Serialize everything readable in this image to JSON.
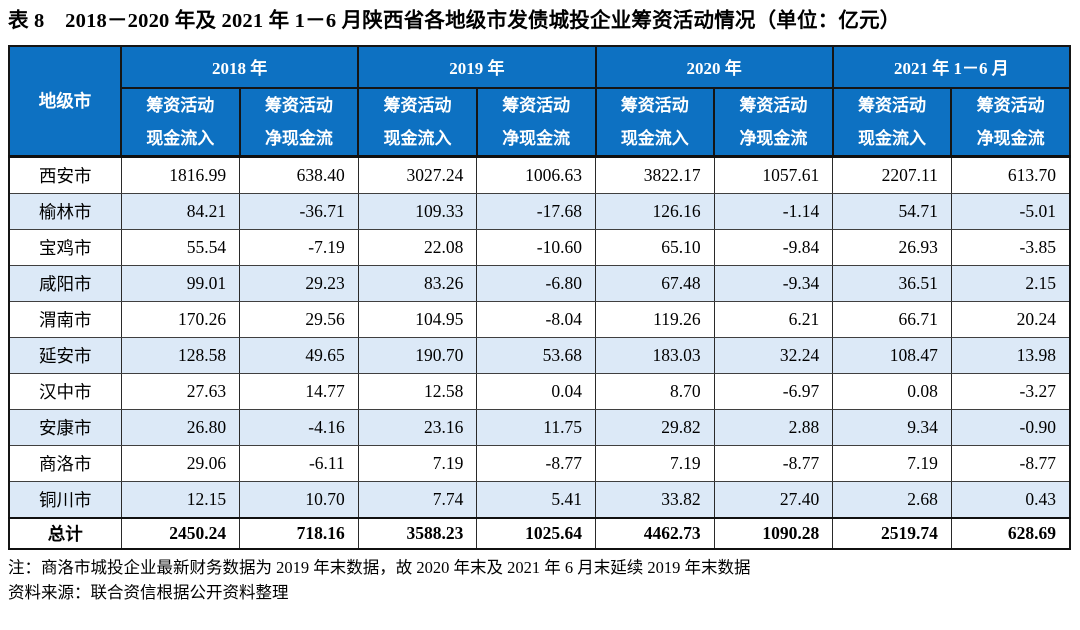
{
  "title": "表 8　2018－2020 年及 2021 年 1－6 月陕西省各地级市发债城投企业筹资活动情况（单位：亿元）",
  "colors": {
    "header_bg": "#0d71c2",
    "header_text": "#ffffff",
    "alt_row_bg": "#dce9f7",
    "border": "#151515"
  },
  "table": {
    "corner_header": "地级市",
    "year_groups": [
      {
        "label": "2018 年"
      },
      {
        "label": "2019 年"
      },
      {
        "label": "2020 年"
      },
      {
        "label": "2021 年 1－6 月"
      }
    ],
    "sub_headers": {
      "inflow_line1": "筹资活动",
      "inflow_line2": "现金流入",
      "net_line1": "筹资活动",
      "net_line2": "净现金流"
    },
    "rows": [
      {
        "city": "西安市",
        "values": [
          "1816.99",
          "638.40",
          "3027.24",
          "1006.63",
          "3822.17",
          "1057.61",
          "2207.11",
          "613.70"
        ]
      },
      {
        "city": "榆林市",
        "values": [
          "84.21",
          "-36.71",
          "109.33",
          "-17.68",
          "126.16",
          "-1.14",
          "54.71",
          "-5.01"
        ]
      },
      {
        "city": "宝鸡市",
        "values": [
          "55.54",
          "-7.19",
          "22.08",
          "-10.60",
          "65.10",
          "-9.84",
          "26.93",
          "-3.85"
        ]
      },
      {
        "city": "咸阳市",
        "values": [
          "99.01",
          "29.23",
          "83.26",
          "-6.80",
          "67.48",
          "-9.34",
          "36.51",
          "2.15"
        ]
      },
      {
        "city": "渭南市",
        "values": [
          "170.26",
          "29.56",
          "104.95",
          "-8.04",
          "119.26",
          "6.21",
          "66.71",
          "20.24"
        ]
      },
      {
        "city": "延安市",
        "values": [
          "128.58",
          "49.65",
          "190.70",
          "53.68",
          "183.03",
          "32.24",
          "108.47",
          "13.98"
        ]
      },
      {
        "city": "汉中市",
        "values": [
          "27.63",
          "14.77",
          "12.58",
          "0.04",
          "8.70",
          "-6.97",
          "0.08",
          "-3.27"
        ]
      },
      {
        "city": "安康市",
        "values": [
          "26.80",
          "-4.16",
          "23.16",
          "11.75",
          "29.82",
          "2.88",
          "9.34",
          "-0.90"
        ]
      },
      {
        "city": "商洛市",
        "values": [
          "29.06",
          "-6.11",
          "7.19",
          "-8.77",
          "7.19",
          "-8.77",
          "7.19",
          "-8.77"
        ]
      },
      {
        "city": "铜川市",
        "values": [
          "12.15",
          "10.70",
          "7.74",
          "5.41",
          "33.82",
          "27.40",
          "2.68",
          "0.43"
        ]
      }
    ],
    "total_row": {
      "city": "总计",
      "values": [
        "2450.24",
        "718.16",
        "3588.23",
        "1025.64",
        "4462.73",
        "1090.28",
        "2519.74",
        "628.69"
      ]
    }
  },
  "notes": {
    "note": "注：商洛市城投企业最新财务数据为 2019 年末数据，故 2020 年末及 2021 年 6 月末延续 2019 年末数据",
    "source": "资料来源：联合资信根据公开资料整理"
  }
}
